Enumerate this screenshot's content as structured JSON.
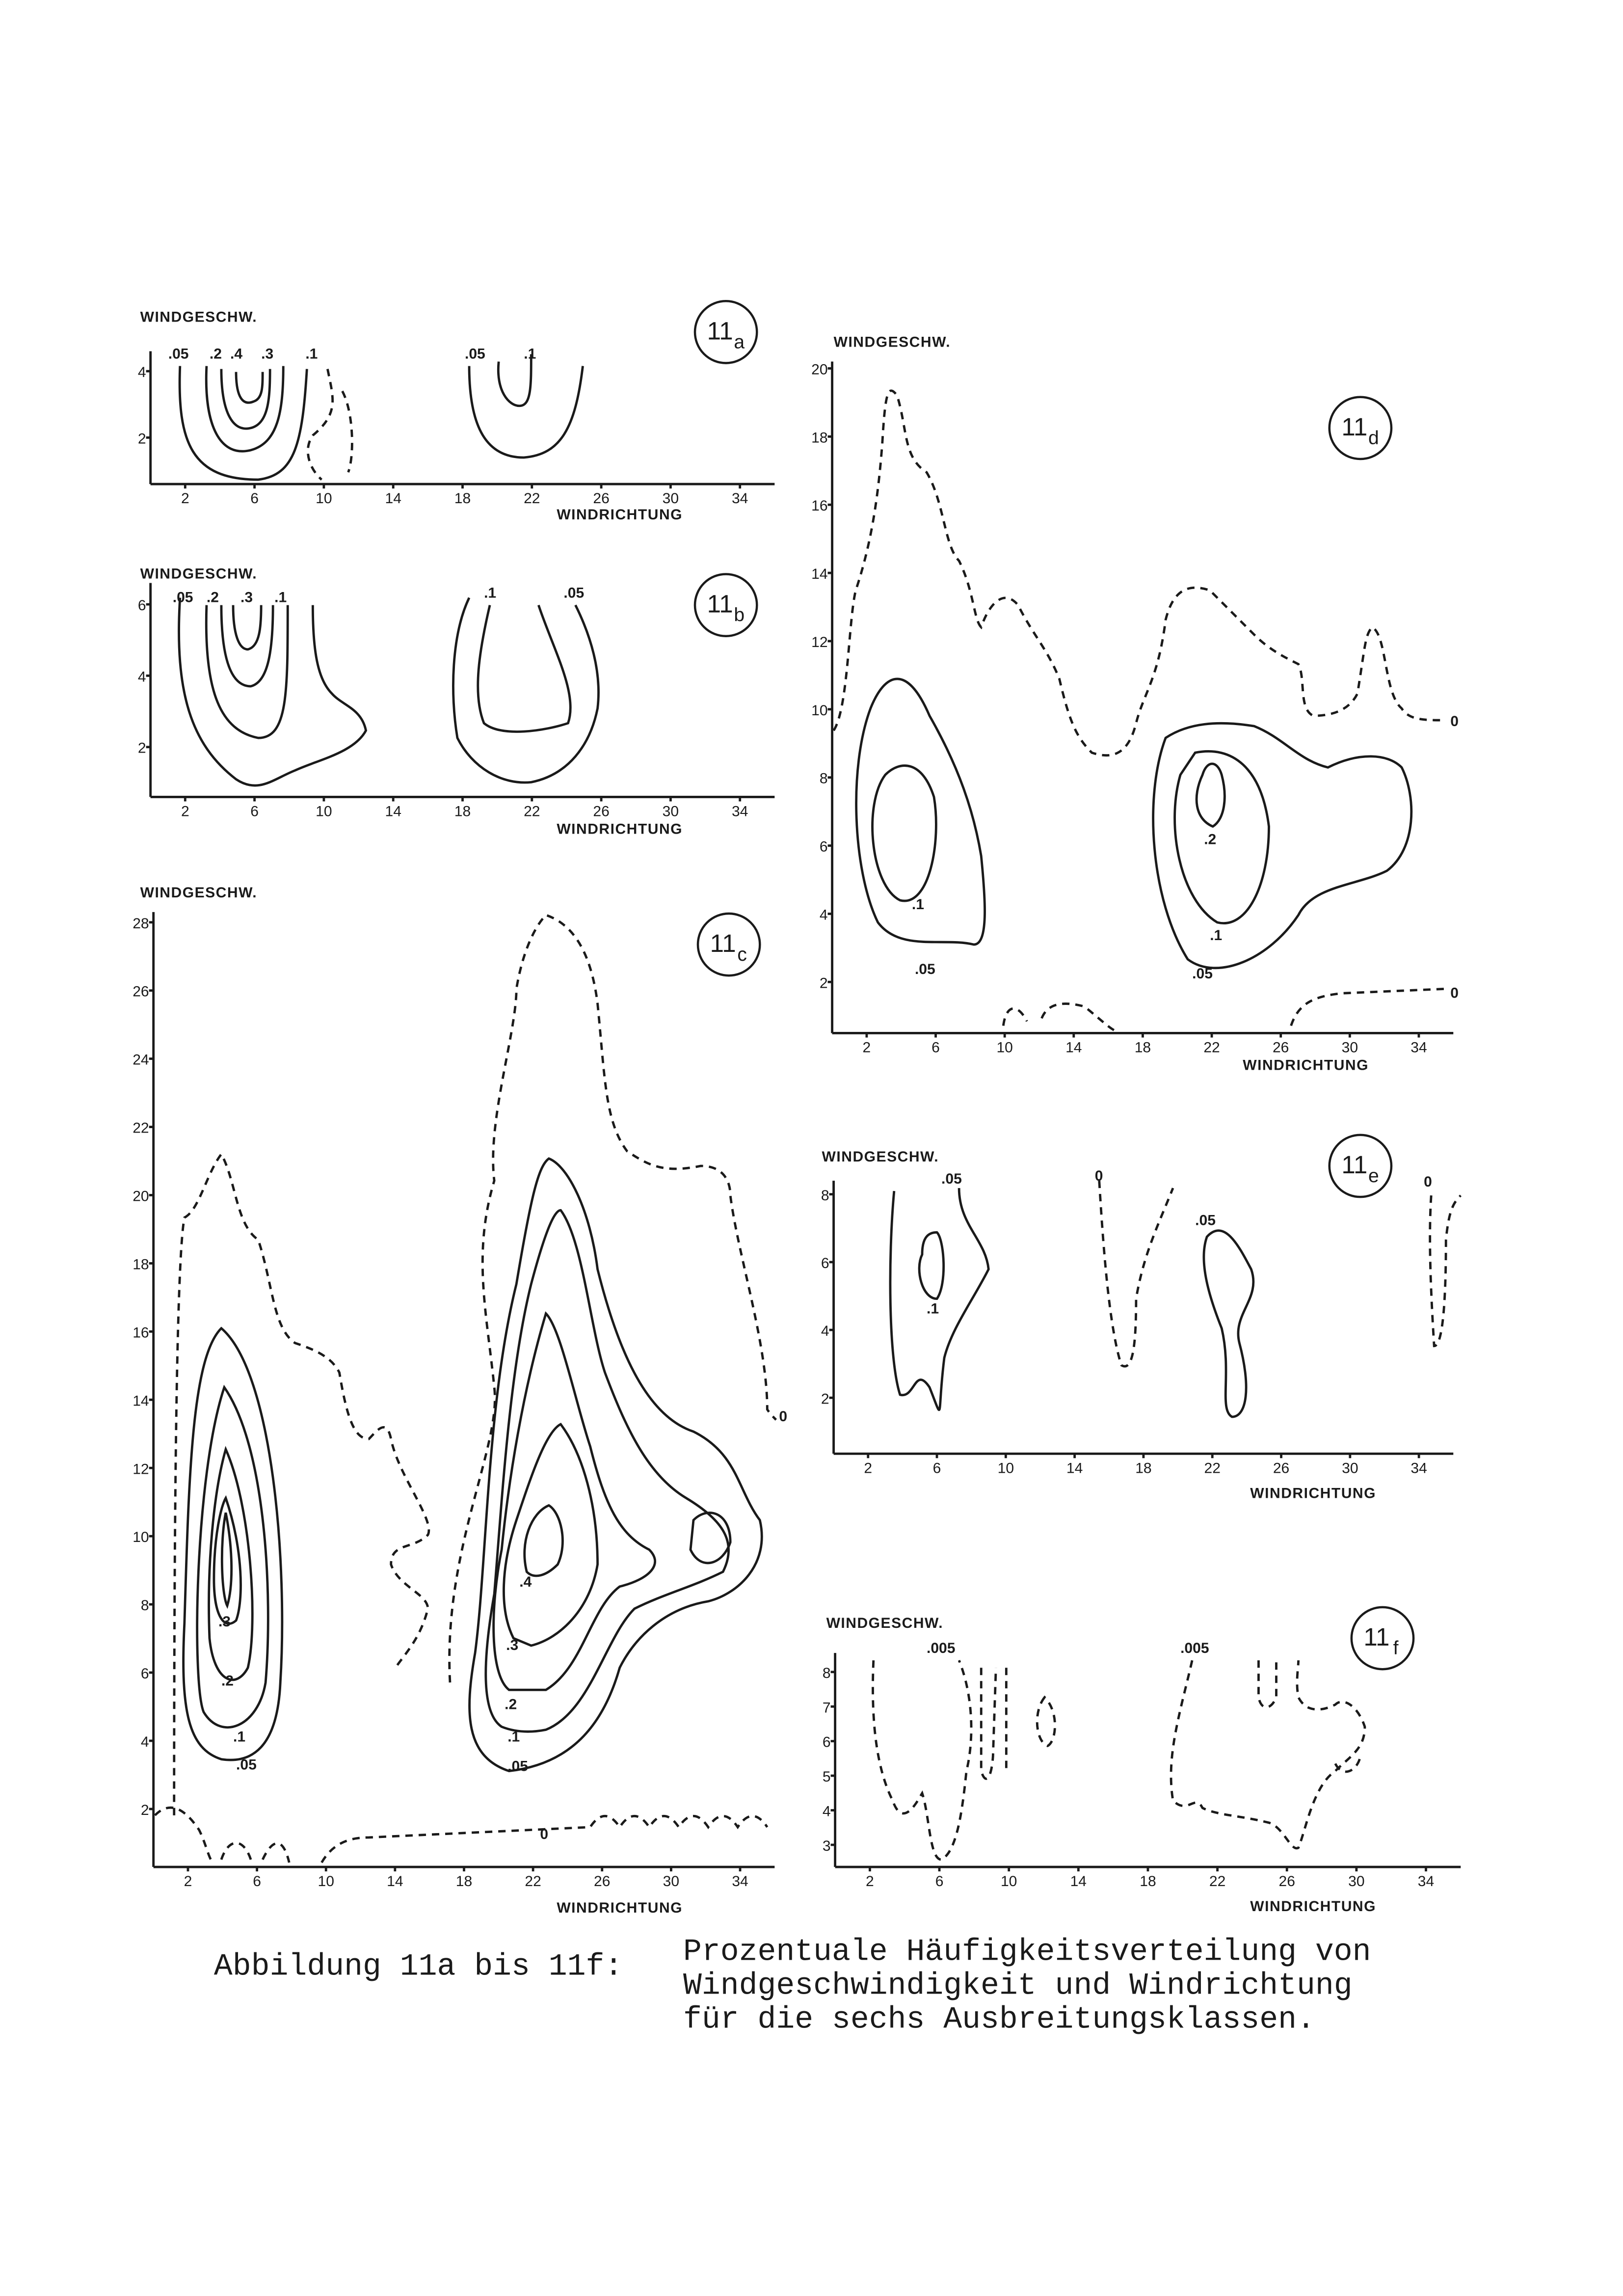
{
  "panels": [
    {
      "tag_number": "11",
      "tag_letter": "a",
      "y_label": "WINDGESCHW.",
      "x_label": "WINDRICHTUNG",
      "xlim": [
        0,
        36
      ],
      "ylim": [
        0.6,
        4.6
      ],
      "xticks": [
        2,
        6,
        10,
        14,
        18,
        22,
        26,
        30,
        34
      ],
      "yticks": [
        2,
        4
      ],
      "contour_labels": [
        ".05",
        ".2",
        ".4",
        ".3",
        ".1",
        ".05",
        ".1"
      ]
    },
    {
      "tag_number": "11",
      "tag_letter": "b",
      "y_label": "WINDGESCHW.",
      "x_label": "WINDRICHTUNG",
      "xlim": [
        0,
        36
      ],
      "ylim": [
        0.6,
        6.6
      ],
      "xticks": [
        2,
        6,
        10,
        14,
        18,
        22,
        26,
        30,
        34
      ],
      "yticks": [
        2,
        4,
        6
      ],
      "contour_labels": [
        ".05",
        ".2",
        ".3",
        ".1",
        ".1",
        ".05"
      ]
    },
    {
      "tag_number": "11",
      "tag_letter": "c",
      "y_label": "WINDGESCHW.",
      "x_label": "WINDRICHTUNG",
      "xlim": [
        0,
        36
      ],
      "ylim": [
        0.3,
        28.3
      ],
      "xticks": [
        2,
        6,
        10,
        14,
        18,
        22,
        26,
        30,
        34
      ],
      "yticks": [
        2,
        4,
        6,
        8,
        10,
        12,
        14,
        16,
        18,
        20,
        22,
        24,
        26,
        28
      ],
      "contour_labels": [
        ".05",
        ".1",
        ".2",
        ".3",
        ".05",
        ".1",
        ".2",
        ".3",
        ".4",
        "0",
        "0"
      ]
    },
    {
      "tag_number": "11",
      "tag_letter": "d",
      "y_label": "WINDGESCHW.",
      "x_label": "WINDRICHTUNG",
      "xlim": [
        0,
        36
      ],
      "ylim": [
        0.5,
        20.2
      ],
      "xticks": [
        2,
        6,
        10,
        14,
        18,
        22,
        26,
        30,
        34
      ],
      "yticks": [
        2,
        4,
        6,
        8,
        10,
        12,
        14,
        16,
        18,
        20
      ],
      "contour_labels": [
        ".1",
        ".05",
        ".2",
        ".1",
        ".05",
        "0",
        "0"
      ]
    },
    {
      "tag_number": "11",
      "tag_letter": "e",
      "y_label": "WINDGESCHW.",
      "x_label": "WINDRICHTUNG",
      "xlim": [
        0,
        36
      ],
      "ylim": [
        0.35,
        8.4
      ],
      "xticks": [
        2,
        6,
        10,
        14,
        18,
        22,
        26,
        30,
        34
      ],
      "yticks": [
        2,
        4,
        6,
        8
      ],
      "contour_labels": [
        ".05",
        ".1",
        "0",
        ".05",
        "0"
      ]
    },
    {
      "tag_number": "11",
      "tag_letter": "f",
      "y_label": "WINDGESCHW.",
      "x_label": "WINDRICHTUNG",
      "xlim": [
        0,
        36
      ],
      "ylim": [
        2.36,
        8.55
      ],
      "xticks": [
        2,
        6,
        10,
        14,
        18,
        22,
        26,
        30,
        34
      ],
      "yticks": [
        3,
        4,
        5,
        6,
        7,
        8
      ],
      "contour_labels": [
        ".005",
        ".005"
      ]
    }
  ],
  "caption": {
    "label": "Abbildung 11a bis 11f:",
    "lines": [
      "Prozentuale Häufigkeitsverteilung von",
      "Windgeschwindigkeit und Windrichtung",
      "für die sechs Ausbreitungsklassen."
    ]
  }
}
